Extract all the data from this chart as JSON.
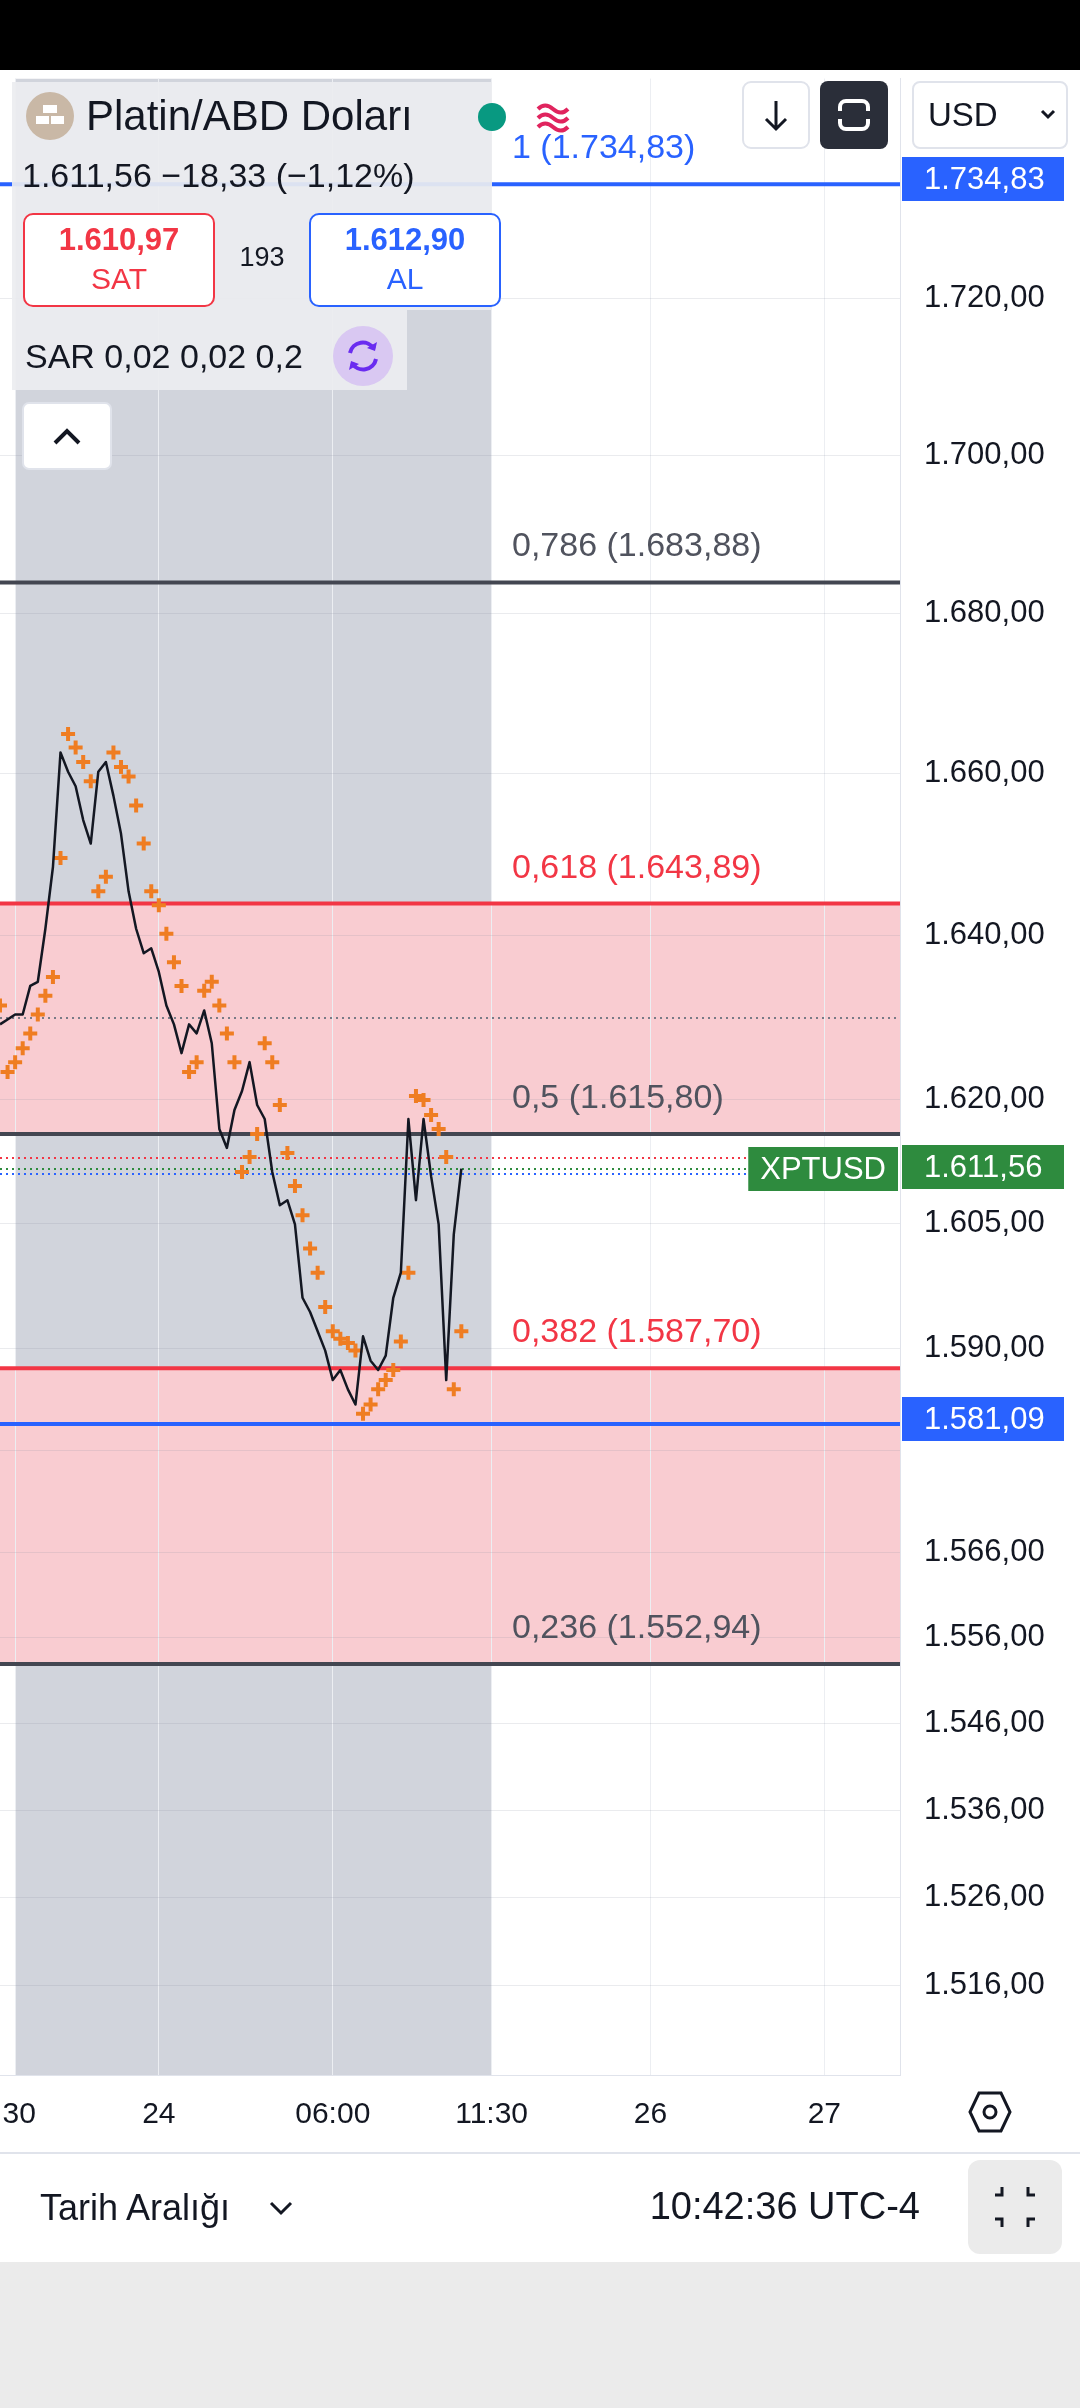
{
  "chart_data": {
    "type": "line",
    "title": "Platin/ABD Doları",
    "subtitle": "1.611,56 −18,33 (−1,12%)",
    "categories": [
      null,
      null,
      ":30",
      null,
      null,
      null,
      null,
      null,
      null,
      null,
      null,
      null,
      null,
      null,
      null,
      null,
      null,
      null,
      null,
      null,
      null,
      "24",
      null,
      null,
      null,
      null,
      null,
      null,
      null,
      null,
      null,
      null,
      null,
      null,
      null,
      null,
      null,
      null,
      null,
      null,
      null,
      null,
      null,
      null,
      "06:00",
      null,
      null,
      null,
      null,
      null,
      null,
      null,
      null,
      null,
      null,
      null,
      null,
      null,
      null,
      null,
      null,
      null,
      null,
      null,
      null,
      "11:30",
      null,
      null,
      null,
      null,
      null,
      null,
      null,
      null,
      null,
      null,
      null,
      null,
      null,
      null,
      null,
      null,
      null,
      null,
      null,
      null,
      "26",
      null,
      null,
      null,
      null,
      null,
      null,
      null,
      null,
      null,
      null,
      null,
      null,
      null,
      null,
      null,
      null,
      null,
      null,
      null,
      null,
      null,
      null,
      "27",
      null,
      null,
      null,
      null,
      null,
      null,
      null,
      null,
      null,
      null
    ],
    "series": [
      {
        "color": "#131722",
        "values": [
          1629.1,
          1629.7,
          1630.3,
          1630.3,
          1633.8,
          1634.3,
          1640.8,
          1648.4,
          1662.6,
          1660.2,
          1658.4,
          1654.2,
          1651.3,
          1660.2,
          1661.4,
          1657.2,
          1652.5,
          1645.4,
          1640.8,
          1637.8,
          1638.4,
          1635.5,
          1631.4,
          1629.1,
          1625.6,
          1629.1,
          1628.0,
          1630.8,
          1626.8,
          1616.4,
          1614.1,
          1618.7,
          1621.0,
          1624.5,
          1619.3,
          1617.6,
          1611.2,
          1607.2,
          1607.8,
          1604.9,
          1596.1,
          1594.4,
          1592.1,
          1589.8,
          1586.3,
          1587.5,
          1585.2,
          1583.4,
          1591.5,
          1588.6,
          1587.5,
          1589.2,
          1596.1,
          1599.1,
          1617.6,
          1607.8,
          1617.6,
          1610.7,
          1604.9,
          1586.3,
          1603.7,
          1611.6,
          null,
          null,
          null,
          null,
          null,
          null,
          null,
          null,
          null,
          null,
          null,
          null,
          null,
          null,
          null,
          null,
          null,
          null,
          null,
          null,
          null,
          null,
          null,
          null,
          null,
          null,
          null,
          null,
          null,
          null,
          null,
          null,
          null,
          null,
          null,
          null,
          null,
          null,
          null,
          null,
          null,
          null,
          null,
          null,
          null,
          null,
          null,
          null,
          null,
          null,
          null,
          null,
          null,
          null,
          null,
          null,
          null,
          null
        ]
      },
      {
        "type": "scatter",
        "marker": "cross",
        "color": "#ef7d22",
        "values": [
          1631.4,
          1623.3,
          1624.5,
          1626.2,
          1628.0,
          1630.3,
          1632.6,
          1634.9,
          1649.5,
          1664.9,
          1663.2,
          1661.4,
          1659.0,
          1645.4,
          1647.2,
          1662.6,
          1660.8,
          1659.6,
          1656.0,
          1651.3,
          1645.4,
          1643.7,
          1640.2,
          1636.7,
          1633.8,
          1623.3,
          1624.5,
          1633.2,
          1634.3,
          1631.4,
          1628.0,
          1624.5,
          1611.2,
          1613.0,
          1615.8,
          1626.8,
          1624.5,
          1619.3,
          1613.5,
          1609.5,
          1606.0,
          1602.0,
          1599.1,
          1595.0,
          1592.1,
          1591.2,
          1590.7,
          1589.8,
          1582.3,
          1583.4,
          1585.2,
          1586.3,
          1587.5,
          1590.9,
          1599.1,
          1620.4,
          1619.9,
          1618.1,
          1616.4,
          1613.0,
          1585.2,
          1592.1,
          null,
          null,
          null,
          null,
          null,
          null,
          null,
          null,
          null,
          null,
          null,
          null,
          null,
          null,
          null,
          null,
          null,
          null,
          null,
          null,
          null,
          null,
          null,
          null,
          null,
          null,
          null,
          null,
          null,
          null,
          null,
          null,
          null,
          null,
          null,
          null,
          null,
          null,
          null,
          null,
          null,
          null,
          null,
          null,
          null,
          null,
          null,
          null,
          null,
          null,
          null,
          null,
          null,
          null,
          null,
          null,
          null,
          null
        ]
      }
    ],
    "log": true,
    "grid": true,
    "ylim": [
      1505.9,
      1748.6
    ],
    "yticks": [
      {
        "value": 1720,
        "label": "1.720,00"
      },
      {
        "value": 1700,
        "label": "1.700,00"
      },
      {
        "value": 1680,
        "label": "1.680,00"
      },
      {
        "value": 1660,
        "label": "1.660,00"
      },
      {
        "value": 1640,
        "label": "1.640,00"
      },
      {
        "value": 1620,
        "label": "1.620,00"
      },
      {
        "value": 1605,
        "label": "1.605,00"
      },
      {
        "value": 1590,
        "label": "1.590,00"
      },
      {
        "value": 1578,
        "label": null
      },
      {
        "value": 1566,
        "label": "1.566,00"
      },
      {
        "value": 1556,
        "label": "1.556,00"
      },
      {
        "value": 1546,
        "label": "1.546,00"
      },
      {
        "value": 1536,
        "label": "1.536,00"
      },
      {
        "value": 1526,
        "label": "1.526,00"
      },
      {
        "value": 1516,
        "label": "1.516,00"
      }
    ],
    "bands": [
      {
        "axis": "x",
        "from": ":30",
        "to": "11:30",
        "color": "#d1d4dc"
      },
      {
        "axis": "y",
        "from": 1615.8,
        "to": 1643.89,
        "color": "#f9ccd1"
      },
      {
        "axis": "y",
        "from": 1552.94,
        "to": 1587.7,
        "color": "#f9ccd1"
      }
    ],
    "ref_lines": [
      {
        "axis": "y",
        "value": 1734.83,
        "label": "1 (1.734,83)",
        "color": "#2962ff",
        "line_style": "solid"
      },
      {
        "axis": "y",
        "value": 1683.88,
        "label": "0,786 (1.683,88)",
        "color": "#434651",
        "line_style": "solid"
      },
      {
        "axis": "y",
        "value": 1643.89,
        "label": "0,618 (1.643,89)",
        "color": "#f23645",
        "line_style": "solid"
      },
      {
        "axis": "y",
        "value": 1629.89,
        "color": "#787b86",
        "line_style": "dotted"
      },
      {
        "axis": "y",
        "value": 1615.8,
        "label": "0,5 (1.615,80)",
        "color": "#434651",
        "line_style": "solid"
      },
      {
        "axis": "y",
        "value": 1612.9,
        "color": "#f23645",
        "line_style": "dotted"
      },
      {
        "axis": "y",
        "value": 1611.56,
        "label": "XPTUSD",
        "color": "#2e8b3e",
        "line_style": "dotted"
      },
      {
        "axis": "y",
        "value": 1610.97,
        "color": "#2962ff",
        "line_style": "dotted"
      },
      {
        "axis": "y",
        "value": 1587.7,
        "label": "0,382 (1.587,70)",
        "color": "#f23645",
        "line_style": "solid"
      },
      {
        "axis": "y",
        "value": 1581.09,
        "color": "#2962ff",
        "line_style": "solid"
      },
      {
        "axis": "y",
        "value": 1552.94,
        "label": "0,236 (1.552,94)",
        "color": "#434651",
        "line_style": "solid"
      }
    ],
    "annotations": [
      "1.610,97",
      "SAT",
      "193",
      "1.612,90",
      "AL",
      "SAR 0,02 0,02 0,2",
      "USD",
      "Tarih Aralığı",
      "10:42:36 UTC-4",
      "1.734,83",
      "1.611,56",
      "1.581,09"
    ]
  }
}
